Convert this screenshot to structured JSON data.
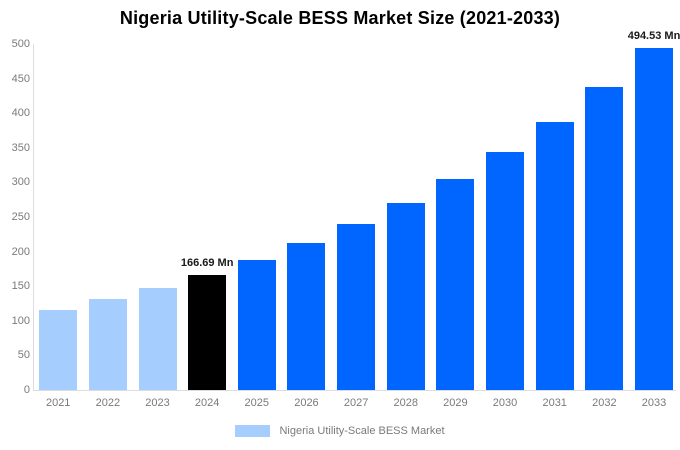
{
  "title": "Nigeria Utility-Scale BESS Market Size (2021-2033)",
  "chart_data": {
    "type": "bar",
    "title": "Nigeria Utility-Scale BESS Market Size (2021-2033)",
    "categories": [
      "2021",
      "2022",
      "2023",
      "2024",
      "2025",
      "2026",
      "2027",
      "2028",
      "2029",
      "2030",
      "2031",
      "2032",
      "2033"
    ],
    "series": [
      {
        "name": "Nigeria Utility-Scale BESS Market",
        "values": [
          116,
          131,
          148,
          166.69,
          188,
          212,
          240,
          270,
          305,
          344,
          388,
          438,
          494.53
        ]
      }
    ],
    "unit": "Mn",
    "xlabel": "",
    "ylabel": "",
    "ylim": [
      0,
      500
    ],
    "yticks": [
      0,
      50,
      100,
      150,
      200,
      250,
      300,
      350,
      400,
      450,
      500
    ],
    "grid": false,
    "legend_position": "bottom",
    "bar_colors": [
      "#A5CEFF",
      "#A5CEFF",
      "#A5CEFF",
      "#000000",
      "#0066FF",
      "#0066FF",
      "#0066FF",
      "#0066FF",
      "#0066FF",
      "#0066FF",
      "#0066FF",
      "#0066FF",
      "#0066FF"
    ],
    "annotations": [
      {
        "index": 3,
        "text": "166.69 Mn"
      },
      {
        "index": 12,
        "text": "494.53 Mn"
      }
    ]
  },
  "legend": {
    "label": "Nigeria Utility-Scale BESS Market",
    "swatch_color": "#A5CEFF"
  },
  "colors": {
    "light_blue_bar": "#A5CEFF",
    "highlight_black_bar": "#000000",
    "bright_blue_bar": "#0066FF",
    "axis_line": "#DDDDDD",
    "tick_label": "#7A7A7A",
    "annotation_text": "#1A1A1A",
    "background": "#FFFFFF"
  }
}
